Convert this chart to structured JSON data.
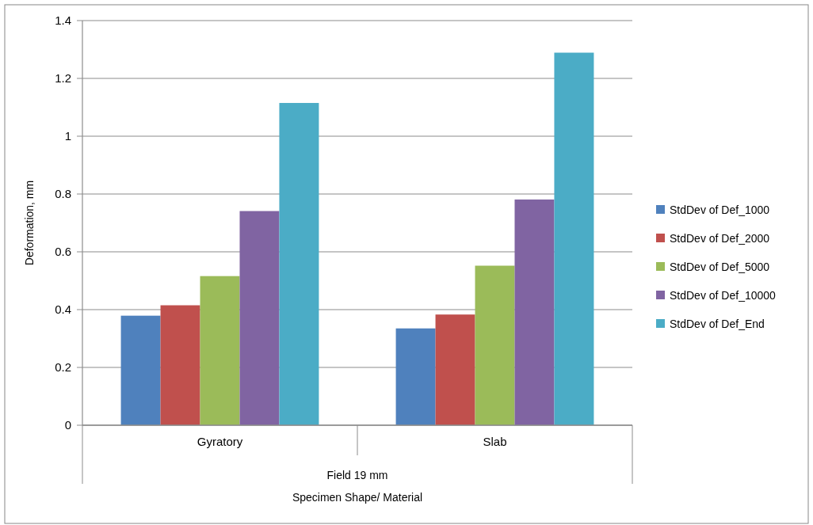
{
  "chart_data": {
    "type": "bar",
    "xlabel": "Specimen Shape/ Material",
    "ylabel": "Deformation, mm",
    "categories": [
      "Gyratory",
      "Slab"
    ],
    "annotations": [
      "Field 19 mm"
    ],
    "series": [
      {
        "name": "StdDev of Def_1000",
        "color": "#4f81bd",
        "values": [
          0.379,
          0.335
        ]
      },
      {
        "name": "StdDev of Def_2000",
        "color": "#c0504d",
        "values": [
          0.415,
          0.383
        ]
      },
      {
        "name": "StdDev of Def_5000",
        "color": "#9bbb59",
        "values": [
          0.516,
          0.552
        ]
      },
      {
        "name": "StdDev of Def_10000",
        "color": "#8064a2",
        "values": [
          0.741,
          0.781
        ]
      },
      {
        "name": "StdDev of Def_End",
        "color": "#4bacc6",
        "values": [
          1.115,
          1.289
        ]
      }
    ],
    "ylim": [
      0,
      1.4
    ],
    "yticks": [
      0,
      0.2,
      0.4,
      0.6,
      0.8,
      1,
      1.2,
      1.4
    ],
    "grid": "y",
    "legend": "right"
  }
}
